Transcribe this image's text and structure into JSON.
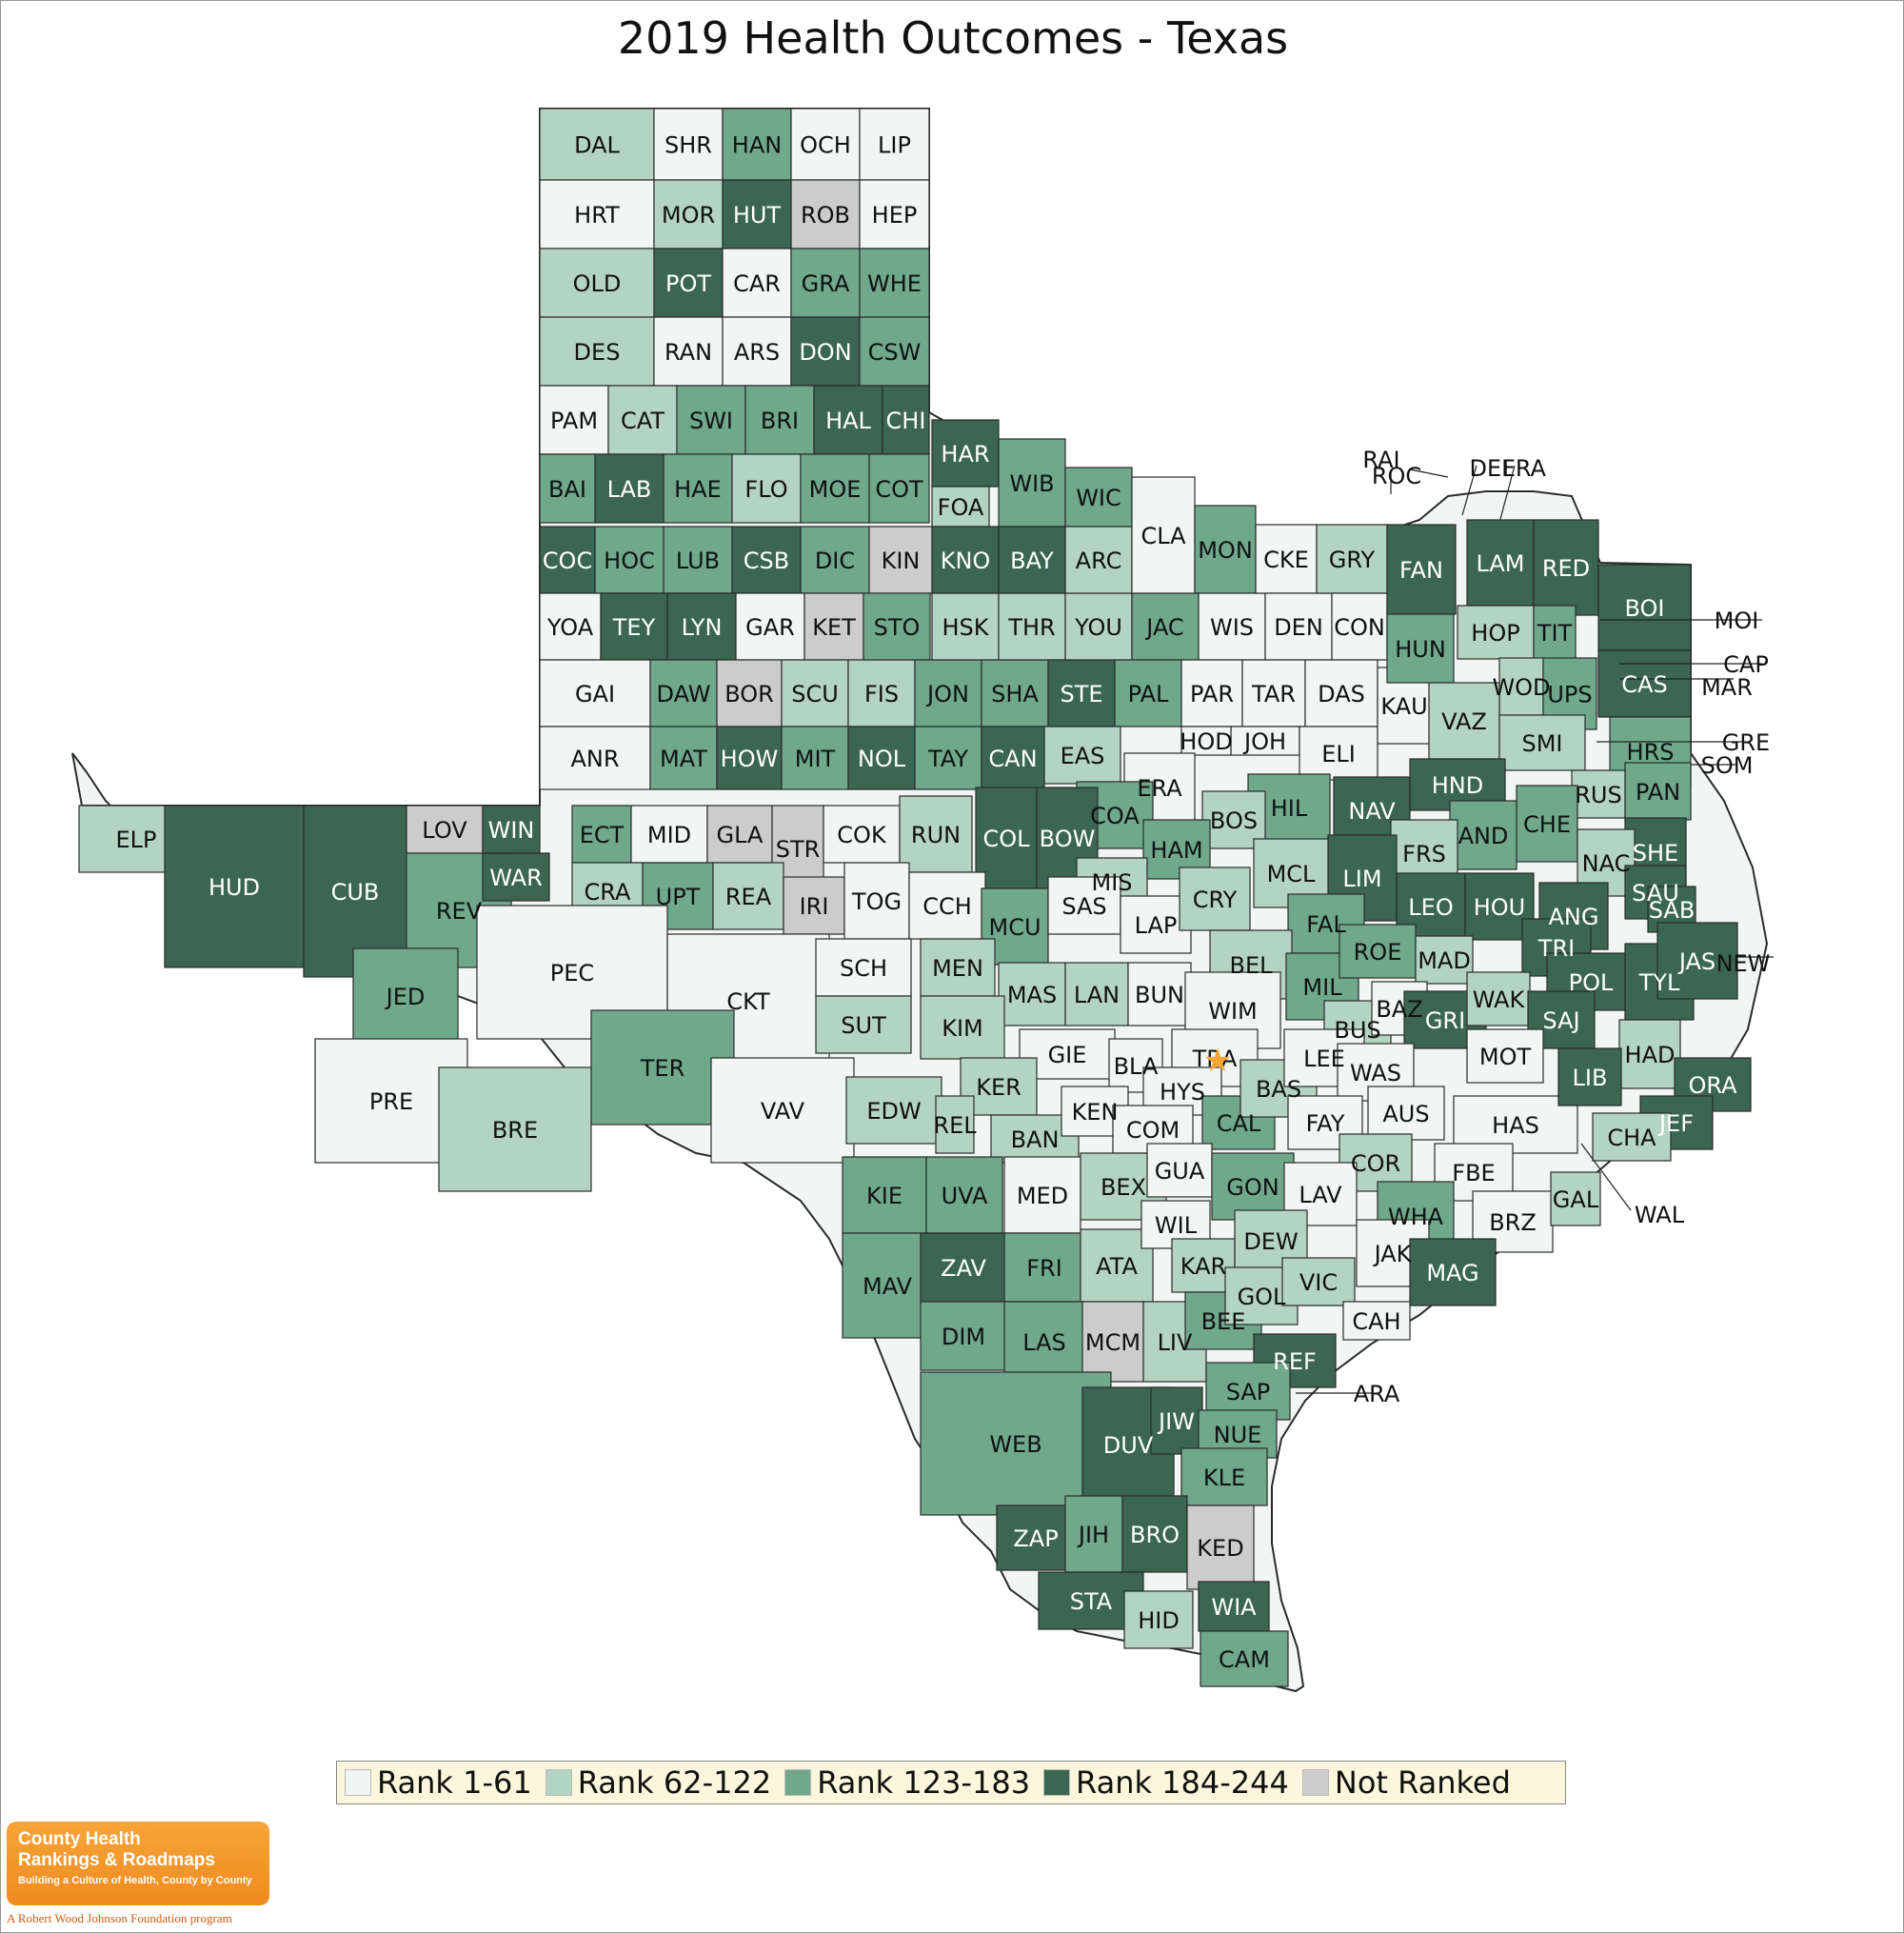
{
  "title": "2019 Health Outcomes - Texas",
  "colors": {
    "rank_1": "#f1f5f3",
    "rank_2": "#b3d4c3",
    "rank_3": "#6fa98a",
    "rank_4": "#3b6652",
    "not_ranked": "#cccccc",
    "border": "#2b2b2b"
  },
  "legend": [
    {
      "key": "rank_1",
      "label": "Rank 1-61"
    },
    {
      "key": "rank_2",
      "label": "Rank 62-122"
    },
    {
      "key": "rank_3",
      "label": "Rank 123-183"
    },
    {
      "key": "rank_4",
      "label": "Rank 184-244"
    },
    {
      "key": "not_ranked",
      "label": "Not Ranked"
    }
  ],
  "brand": {
    "line1": "County Health",
    "line2": "Rankings & Roadmaps",
    "tagline": "Building a Culture of Health, County by County",
    "foot": "A Robert Wood Johnson Foundation program"
  },
  "capital_icon": "star-icon",
  "counties": [
    {
      "name": "DAL",
      "rank": "rank_2"
    },
    {
      "name": "SHR",
      "rank": "rank_1"
    },
    {
      "name": "HAN",
      "rank": "rank_3"
    },
    {
      "name": "OCH",
      "rank": "rank_1"
    },
    {
      "name": "LIP",
      "rank": "rank_1"
    },
    {
      "name": "HRT",
      "rank": "rank_1"
    },
    {
      "name": "MOR",
      "rank": "rank_2"
    },
    {
      "name": "HUT",
      "rank": "rank_4"
    },
    {
      "name": "ROB",
      "rank": "not_ranked"
    },
    {
      "name": "HEP",
      "rank": "rank_1"
    },
    {
      "name": "OLD",
      "rank": "rank_2"
    },
    {
      "name": "POT",
      "rank": "rank_4"
    },
    {
      "name": "CAR",
      "rank": "rank_1"
    },
    {
      "name": "GRA",
      "rank": "rank_3"
    },
    {
      "name": "WHE",
      "rank": "rank_3"
    },
    {
      "name": "DES",
      "rank": "rank_2"
    },
    {
      "name": "RAN",
      "rank": "rank_1"
    },
    {
      "name": "ARS",
      "rank": "rank_1"
    },
    {
      "name": "DON",
      "rank": "rank_4"
    },
    {
      "name": "CSW",
      "rank": "rank_3"
    },
    {
      "name": "PAM",
      "rank": "rank_1"
    },
    {
      "name": "CAT",
      "rank": "rank_2"
    },
    {
      "name": "SWI",
      "rank": "rank_3"
    },
    {
      "name": "BRI",
      "rank": "rank_3"
    },
    {
      "name": "HAL",
      "rank": "rank_4"
    },
    {
      "name": "CHI",
      "rank": "rank_4"
    },
    {
      "name": "BAI",
      "rank": "rank_3"
    },
    {
      "name": "LAB",
      "rank": "rank_4"
    },
    {
      "name": "HAE",
      "rank": "rank_3"
    },
    {
      "name": "FLO",
      "rank": "rank_2"
    },
    {
      "name": "MOE",
      "rank": "rank_3"
    },
    {
      "name": "COT",
      "rank": "rank_3"
    },
    {
      "name": "COC",
      "rank": "rank_4"
    },
    {
      "name": "HOC",
      "rank": "rank_3"
    },
    {
      "name": "LUB",
      "rank": "rank_3"
    },
    {
      "name": "CSB",
      "rank": "rank_4"
    },
    {
      "name": "DIC",
      "rank": "rank_3"
    },
    {
      "name": "KIN",
      "rank": "not_ranked"
    },
    {
      "name": "YOA",
      "rank": "rank_1"
    },
    {
      "name": "TEY",
      "rank": "rank_4"
    },
    {
      "name": "LYN",
      "rank": "rank_4"
    },
    {
      "name": "GAR",
      "rank": "rank_1"
    },
    {
      "name": "KET",
      "rank": "not_ranked"
    },
    {
      "name": "GAI",
      "rank": "rank_1"
    },
    {
      "name": "DAW",
      "rank": "rank_3"
    },
    {
      "name": "BOR",
      "rank": "not_ranked"
    },
    {
      "name": "SCU",
      "rank": "rank_2"
    },
    {
      "name": "ANR",
      "rank": "rank_1"
    },
    {
      "name": "MAT",
      "rank": "rank_3"
    },
    {
      "name": "HOW",
      "rank": "rank_4"
    },
    {
      "name": "MIT",
      "rank": "rank_3"
    },
    {
      "name": "FIS",
      "rank": "rank_2"
    },
    {
      "name": "NOL",
      "rank": "rank_4"
    },
    {
      "name": "STO",
      "rank": "rank_3"
    },
    {
      "name": "JON",
      "rank": "rank_3"
    },
    {
      "name": "TAY",
      "rank": "rank_3"
    },
    {
      "name": "HSK",
      "rank": "rank_2"
    },
    {
      "name": "SHA",
      "rank": "rank_3"
    },
    {
      "name": "CAN",
      "rank": "rank_4"
    },
    {
      "name": "HAR",
      "rank": "rank_4"
    },
    {
      "name": "FOA",
      "rank": "rank_2"
    },
    {
      "name": "KNO",
      "rank": "rank_4"
    },
    {
      "name": "THR",
      "rank": "rank_2"
    },
    {
      "name": "STE",
      "rank": "rank_4"
    },
    {
      "name": "WIB",
      "rank": "rank_3"
    },
    {
      "name": "BAY",
      "rank": "rank_4"
    },
    {
      "name": "YOU",
      "rank": "rank_2"
    },
    {
      "name": "WIC",
      "rank": "rank_3"
    },
    {
      "name": "ARC",
      "rank": "rank_2"
    },
    {
      "name": "JAC",
      "rank": "rank_3"
    },
    {
      "name": "PAL",
      "rank": "rank_3"
    },
    {
      "name": "CLA",
      "rank": "rank_1"
    },
    {
      "name": "MON",
      "rank": "rank_3"
    },
    {
      "name": "WIS",
      "rank": "rank_1"
    },
    {
      "name": "PAR",
      "rank": "rank_1"
    },
    {
      "name": "CKE",
      "rank": "rank_1"
    },
    {
      "name": "DEN",
      "rank": "rank_1"
    },
    {
      "name": "TAR",
      "rank": "rank_1"
    },
    {
      "name": "JOH",
      "rank": "rank_1"
    },
    {
      "name": "GRY",
      "rank": "rank_2"
    },
    {
      "name": "CON",
      "rank": "rank_1"
    },
    {
      "name": "DAS",
      "rank": "rank_1"
    },
    {
      "name": "ELI",
      "rank": "rank_1"
    },
    {
      "name": "KAU",
      "rank": "rank_1"
    },
    {
      "name": "FAN",
      "rank": "rank_4"
    },
    {
      "name": "HUN",
      "rank": "rank_3"
    },
    {
      "name": "ROC",
      "rank": "rank_1"
    },
    {
      "name": "RAI",
      "rank": "rank_2"
    },
    {
      "name": "DEL",
      "rank": "rank_2"
    },
    {
      "name": "FRA",
      "rank": "rank_3"
    },
    {
      "name": "LAM",
      "rank": "rank_4"
    },
    {
      "name": "RED",
      "rank": "rank_4"
    },
    {
      "name": "HOP",
      "rank": "rank_2"
    },
    {
      "name": "TIT",
      "rank": "rank_3"
    },
    {
      "name": "BOI",
      "rank": "rank_4"
    },
    {
      "name": "MOI",
      "rank": "rank_4"
    },
    {
      "name": "CAS",
      "rank": "rank_4"
    },
    {
      "name": "CAP",
      "rank": "rank_3"
    },
    {
      "name": "MAR",
      "rank": "rank_4"
    },
    {
      "name": "WOD",
      "rank": "rank_2"
    },
    {
      "name": "UPS",
      "rank": "rank_3"
    },
    {
      "name": "VAZ",
      "rank": "rank_2"
    },
    {
      "name": "SMI",
      "rank": "rank_2"
    },
    {
      "name": "HRS",
      "rank": "rank_3"
    },
    {
      "name": "GRE",
      "rank": "rank_3"
    },
    {
      "name": "SOM",
      "rank": "rank_1"
    },
    {
      "name": "RUS",
      "rank": "rank_2"
    },
    {
      "name": "PAN",
      "rank": "rank_3"
    },
    {
      "name": "HOD",
      "rank": "rank_1"
    },
    {
      "name": "ERA",
      "rank": "rank_1"
    },
    {
      "name": "EAS",
      "rank": "rank_2"
    },
    {
      "name": "HND",
      "rank": "rank_4"
    },
    {
      "name": "NAV",
      "rank": "rank_4"
    },
    {
      "name": "HIL",
      "rank": "rank_3"
    },
    {
      "name": "BOS",
      "rank": "rank_2"
    },
    {
      "name": "COA",
      "rank": "rank_3"
    },
    {
      "name": "CHE",
      "rank": "rank_3"
    },
    {
      "name": "AND",
      "rank": "rank_3"
    },
    {
      "name": "FRS",
      "rank": "rank_2"
    },
    {
      "name": "LIM",
      "rank": "rank_4"
    },
    {
      "name": "MCL",
      "rank": "rank_2"
    },
    {
      "name": "HAM",
      "rank": "rank_3"
    },
    {
      "name": "SHE",
      "rank": "rank_4"
    },
    {
      "name": "NAC",
      "rank": "rank_2"
    },
    {
      "name": "SAU",
      "rank": "rank_4"
    },
    {
      "name": "SAB",
      "rank": "rank_4"
    },
    {
      "name": "ELP",
      "rank": "rank_2"
    },
    {
      "name": "HUD",
      "rank": "rank_4"
    },
    {
      "name": "CUB",
      "rank": "rank_4"
    },
    {
      "name": "LOV",
      "rank": "not_ranked"
    },
    {
      "name": "WIN",
      "rank": "rank_4"
    },
    {
      "name": "ECT",
      "rank": "rank_3"
    },
    {
      "name": "MID",
      "rank": "rank_1"
    },
    {
      "name": "GLA",
      "rank": "not_ranked"
    },
    {
      "name": "STR",
      "rank": "not_ranked"
    },
    {
      "name": "COK",
      "rank": "rank_1"
    },
    {
      "name": "RUN",
      "rank": "rank_2"
    },
    {
      "name": "COL",
      "rank": "rank_4"
    },
    {
      "name": "BOW",
      "rank": "rank_4"
    },
    {
      "name": "REV",
      "rank": "rank_3"
    },
    {
      "name": "WAR",
      "rank": "rank_4"
    },
    {
      "name": "CRA",
      "rank": "rank_2"
    },
    {
      "name": "UPT",
      "rank": "rank_3"
    },
    {
      "name": "REA",
      "rank": "rank_2"
    },
    {
      "name": "IRI",
      "rank": "not_ranked"
    },
    {
      "name": "TOG",
      "rank": "rank_1"
    },
    {
      "name": "CCH",
      "rank": "rank_1"
    },
    {
      "name": "MCU",
      "rank": "rank_3"
    },
    {
      "name": "MIS",
      "rank": "rank_2"
    },
    {
      "name": "SAS",
      "rank": "rank_1"
    },
    {
      "name": "LAP",
      "rank": "rank_1"
    },
    {
      "name": "CRY",
      "rank": "rank_2"
    },
    {
      "name": "FAL",
      "rank": "rank_3"
    },
    {
      "name": "LEO",
      "rank": "rank_4"
    },
    {
      "name": "HOU",
      "rank": "rank_4"
    },
    {
      "name": "ANG",
      "rank": "rank_4"
    },
    {
      "name": "JED",
      "rank": "rank_3"
    },
    {
      "name": "PEC",
      "rank": "rank_1"
    },
    {
      "name": "CKT",
      "rank": "rank_1"
    },
    {
      "name": "SCH",
      "rank": "rank_1"
    },
    {
      "name": "MEN",
      "rank": "rank_2"
    },
    {
      "name": "MAS",
      "rank": "rank_2"
    },
    {
      "name": "LAN",
      "rank": "rank_2"
    },
    {
      "name": "BUN",
      "rank": "rank_1"
    },
    {
      "name": "BEL",
      "rank": "rank_2"
    },
    {
      "name": "WIM",
      "rank": "rank_1"
    },
    {
      "name": "MIL",
      "rank": "rank_3"
    },
    {
      "name": "ROE",
      "rank": "rank_3"
    },
    {
      "name": "MAD",
      "rank": "rank_2"
    },
    {
      "name": "TRI",
      "rank": "rank_4"
    },
    {
      "name": "POL",
      "rank": "rank_4"
    },
    {
      "name": "TYL",
      "rank": "rank_4"
    },
    {
      "name": "JAS",
      "rank": "rank_4"
    },
    {
      "name": "NEW",
      "rank": "rank_4"
    },
    {
      "name": "SUT",
      "rank": "rank_2"
    },
    {
      "name": "KIM",
      "rank": "rank_2"
    },
    {
      "name": "GIE",
      "rank": "rank_1"
    },
    {
      "name": "BLA",
      "rank": "rank_1"
    },
    {
      "name": "TRA",
      "rank": "rank_1"
    },
    {
      "name": "BUS",
      "rank": "rank_2"
    },
    {
      "name": "BAZ",
      "rank": "rank_1"
    },
    {
      "name": "GRI",
      "rank": "rank_4"
    },
    {
      "name": "WAK",
      "rank": "rank_2"
    },
    {
      "name": "SAJ",
      "rank": "rank_4"
    },
    {
      "name": "MOT",
      "rank": "rank_1"
    },
    {
      "name": "HAD",
      "rank": "rank_2"
    },
    {
      "name": "TER",
      "rank": "rank_3"
    },
    {
      "name": "PRE",
      "rank": "rank_1"
    },
    {
      "name": "BRE",
      "rank": "rank_2"
    },
    {
      "name": "VAV",
      "rank": "rank_1"
    },
    {
      "name": "EDW",
      "rank": "rank_2"
    },
    {
      "name": "KER",
      "rank": "rank_2"
    },
    {
      "name": "REL",
      "rank": "rank_2"
    },
    {
      "name": "BAN",
      "rank": "rank_2"
    },
    {
      "name": "KEN",
      "rank": "rank_1"
    },
    {
      "name": "HYS",
      "rank": "rank_1"
    },
    {
      "name": "COM",
      "rank": "rank_1"
    },
    {
      "name": "CAL",
      "rank": "rank_3"
    },
    {
      "name": "BAS",
      "rank": "rank_2"
    },
    {
      "name": "LEE",
      "rank": "rank_1"
    },
    {
      "name": "WAS",
      "rank": "rank_1"
    },
    {
      "name": "FAY",
      "rank": "rank_1"
    },
    {
      "name": "AUS",
      "rank": "rank_1"
    },
    {
      "name": "HAS",
      "rank": "rank_1"
    },
    {
      "name": "LIB",
      "rank": "rank_4"
    },
    {
      "name": "ORA",
      "rank": "rank_4"
    },
    {
      "name": "JEF",
      "rank": "rank_4"
    },
    {
      "name": "CHA",
      "rank": "rank_2"
    },
    {
      "name": "KIE",
      "rank": "rank_3"
    },
    {
      "name": "UVA",
      "rank": "rank_3"
    },
    {
      "name": "MED",
      "rank": "rank_1"
    },
    {
      "name": "BEX",
      "rank": "rank_2"
    },
    {
      "name": "GUA",
      "rank": "rank_1"
    },
    {
      "name": "GON",
      "rank": "rank_3"
    },
    {
      "name": "COR",
      "rank": "rank_2"
    },
    {
      "name": "LAV",
      "rank": "rank_1"
    },
    {
      "name": "FBE",
      "rank": "rank_1"
    },
    {
      "name": "WHA",
      "rank": "rank_3"
    },
    {
      "name": "BRZ",
      "rank": "rank_1"
    },
    {
      "name": "GAL",
      "rank": "rank_2"
    },
    {
      "name": "WAL",
      "rank": "rank_1"
    },
    {
      "name": "MAV",
      "rank": "rank_3"
    },
    {
      "name": "ZAV",
      "rank": "rank_4"
    },
    {
      "name": "FRI",
      "rank": "rank_3"
    },
    {
      "name": "ATA",
      "rank": "rank_2"
    },
    {
      "name": "WIL",
      "rank": "rank_1"
    },
    {
      "name": "KAR",
      "rank": "rank_2"
    },
    {
      "name": "DEW",
      "rank": "rank_2"
    },
    {
      "name": "JAK",
      "rank": "rank_1"
    },
    {
      "name": "MAG",
      "rank": "rank_4"
    },
    {
      "name": "DIM",
      "rank": "rank_3"
    },
    {
      "name": "LAS",
      "rank": "rank_3"
    },
    {
      "name": "MCM",
      "rank": "not_ranked"
    },
    {
      "name": "LIV",
      "rank": "rank_2"
    },
    {
      "name": "BEE",
      "rank": "rank_3"
    },
    {
      "name": "GOL",
      "rank": "rank_2"
    },
    {
      "name": "VIC",
      "rank": "rank_2"
    },
    {
      "name": "CAH",
      "rank": "rank_1"
    },
    {
      "name": "REF",
      "rank": "rank_4"
    },
    {
      "name": "ARA",
      "rank": "rank_1"
    },
    {
      "name": "WEB",
      "rank": "rank_3"
    },
    {
      "name": "DUV",
      "rank": "rank_4"
    },
    {
      "name": "JIW",
      "rank": "rank_4"
    },
    {
      "name": "SAP",
      "rank": "rank_3"
    },
    {
      "name": "NUE",
      "rank": "rank_3"
    },
    {
      "name": "KLE",
      "rank": "rank_3"
    },
    {
      "name": "ZAP",
      "rank": "rank_4"
    },
    {
      "name": "JIH",
      "rank": "rank_3"
    },
    {
      "name": "BRO",
      "rank": "rank_4"
    },
    {
      "name": "KED",
      "rank": "not_ranked"
    },
    {
      "name": "STA",
      "rank": "rank_4"
    },
    {
      "name": "HID",
      "rank": "rank_2"
    },
    {
      "name": "WIA",
      "rank": "rank_4"
    },
    {
      "name": "CAM",
      "rank": "rank_3"
    }
  ]
}
